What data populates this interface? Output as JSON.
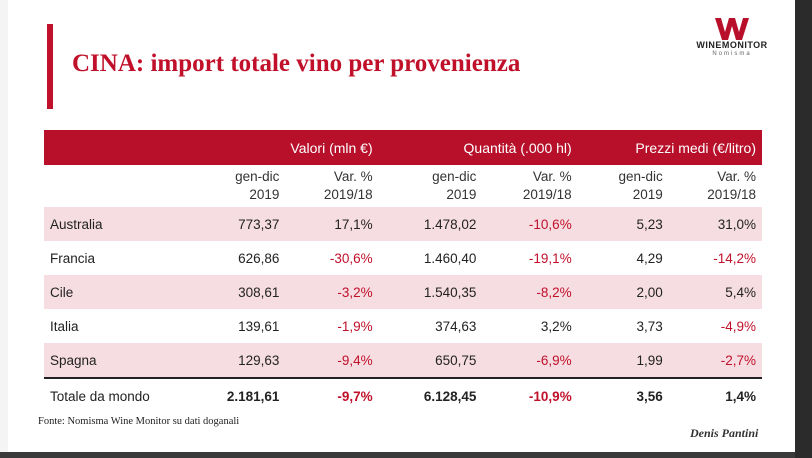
{
  "title": "CINA: import totale vino per provenienza",
  "logo": {
    "name": "WINEMONITOR",
    "sub": "Nomisma"
  },
  "table": {
    "group_headers": [
      "Valori (mln €)",
      "Quantità (.000 hl)",
      "Prezzi medi (€/litro)"
    ],
    "sub_headers": [
      [
        "gen-dic",
        "2019"
      ],
      [
        "Var. %",
        "2019/18"
      ],
      [
        "gen-dic",
        "2019"
      ],
      [
        "Var. %",
        "2019/18"
      ],
      [
        "gen-dic",
        "2019"
      ],
      [
        "Var. %",
        "2019/18"
      ]
    ],
    "rows": [
      {
        "country": "Australia",
        "cells": [
          "773,37",
          "17,1%",
          "1.478,02",
          "-10,6%",
          "5,23",
          "31,0%"
        ]
      },
      {
        "country": "Francia",
        "cells": [
          "626,86",
          "-30,6%",
          "1.460,40",
          "-19,1%",
          "4,29",
          "-14,2%"
        ]
      },
      {
        "country": "Cile",
        "cells": [
          "308,61",
          "-3,2%",
          "1.540,35",
          "-8,2%",
          "2,00",
          "5,4%"
        ]
      },
      {
        "country": "Italia",
        "cells": [
          "139,61",
          "-1,9%",
          "374,63",
          "3,2%",
          "3,73",
          "-4,9%"
        ]
      },
      {
        "country": "Spagna",
        "cells": [
          "129,63",
          "-9,4%",
          "650,75",
          "-6,9%",
          "1,99",
          "-2,7%"
        ]
      }
    ],
    "total": {
      "label": "Totale da mondo",
      "cells": [
        "2.181,61",
        "-9,7%",
        "6.128,45",
        "-10,9%",
        "3,56",
        "1,4%"
      ]
    }
  },
  "source": "Fonte: Nomisma Wine Monitor su dati doganali",
  "author": "Denis Pantini",
  "colors": {
    "accent": "#c0102a",
    "header_bg": "#b8102b",
    "stripe": "#f6dde1"
  }
}
